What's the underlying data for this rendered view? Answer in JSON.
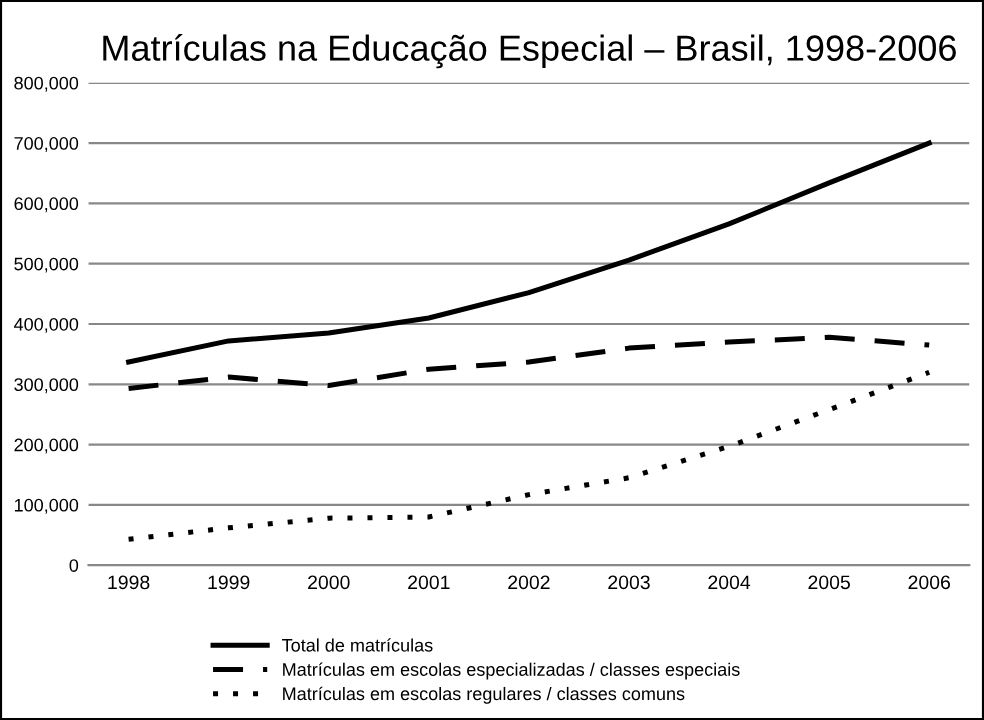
{
  "chart_data": {
    "type": "line",
    "title": "Matrículas na Educação Especial – Brasil, 1998-2006",
    "categories": [
      "1998",
      "1999",
      "2000",
      "2001",
      "2002",
      "2003",
      "2004",
      "2005",
      "2006"
    ],
    "series": [
      {
        "name": "Total de matrículas",
        "color": "#000000",
        "line_style": "solid",
        "values": [
          337000,
          372000,
          385000,
          410000,
          452000,
          506000,
          566000,
          634000,
          700000
        ]
      },
      {
        "name": "Matrículas em escolas especializadas / classes especiais",
        "color": "#000000",
        "line_style": "dashed",
        "values": [
          293000,
          312000,
          298000,
          325000,
          337000,
          360000,
          370000,
          378000,
          365000
        ]
      },
      {
        "name": "Matrículas em escolas regulares / classes comuns",
        "color": "#000000",
        "line_style": "dotted",
        "values": [
          43000,
          62000,
          78000,
          80000,
          117000,
          145000,
          197000,
          258000,
          320000
        ]
      }
    ],
    "ylim": [
      0,
      800000
    ],
    "yticks": [
      {
        "value": 0,
        "label": "0"
      },
      {
        "value": 100000,
        "label": "100,000"
      },
      {
        "value": 200000,
        "label": "200,000"
      },
      {
        "value": 300000,
        "label": "300,000"
      },
      {
        "value": 400000,
        "label": "400,000"
      },
      {
        "value": 500000,
        "label": "500,000"
      },
      {
        "value": 600000,
        "label": "600,000"
      },
      {
        "value": 700000,
        "label": "700,000"
      },
      {
        "value": 800000,
        "label": "800,000"
      }
    ],
    "grid": "y",
    "legend": "bottom",
    "marker": "none"
  }
}
